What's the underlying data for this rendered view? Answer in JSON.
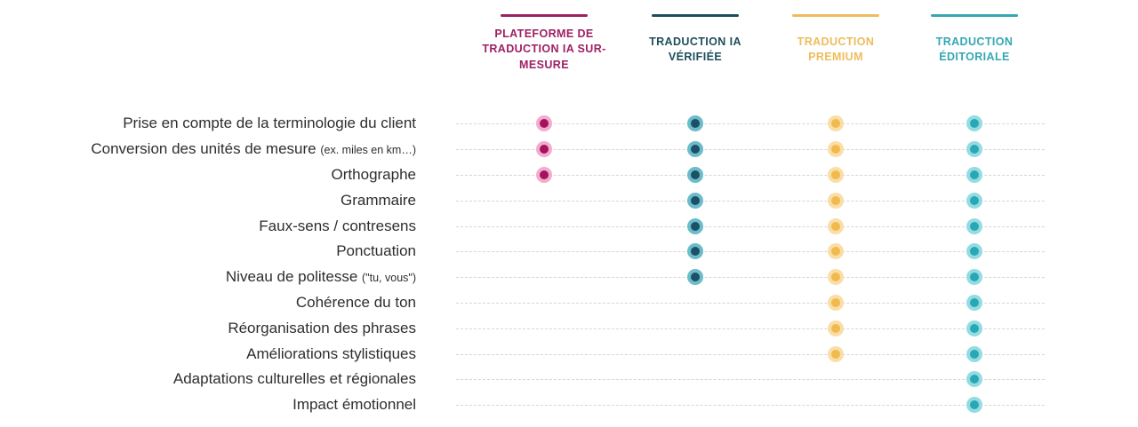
{
  "table": {
    "columns": [
      {
        "label": "PLATEFORME DE TRADUCTION IA SUR- MESURE",
        "color": "#9e2064",
        "dot_color": "#a5135e",
        "ring_color": "#f3abce"
      },
      {
        "label": "TRADUCTION IA VÉRIFIÉE",
        "color": "#1d4e5e",
        "dot_color": "#1b5164",
        "ring_color": "#6cbccb"
      },
      {
        "label": "TRADUCTION PREMIUM",
        "color": "#eebc5c",
        "dot_color": "#f2b94d",
        "ring_color": "#f9dea7"
      },
      {
        "label": "TRADUCTION ÉDITORIALE",
        "color": "#35a7b5",
        "dot_color": "#2aa7b5",
        "ring_color": "#93dce2"
      }
    ],
    "rows": [
      {
        "label": "Prise en compte de la terminologie du client",
        "note": "",
        "values": [
          true,
          true,
          true,
          true
        ]
      },
      {
        "label": "Conversion des unités de mesure",
        "note": "(ex. miles en km…)",
        "values": [
          true,
          true,
          true,
          true
        ]
      },
      {
        "label": "Orthographe",
        "note": "",
        "values": [
          true,
          true,
          true,
          true
        ]
      },
      {
        "label": "Grammaire",
        "note": "",
        "values": [
          false,
          true,
          true,
          true
        ]
      },
      {
        "label": "Faux-sens / contresens",
        "note": "",
        "values": [
          false,
          true,
          true,
          true
        ]
      },
      {
        "label": "Ponctuation",
        "note": "",
        "values": [
          false,
          true,
          true,
          true
        ]
      },
      {
        "label": "Niveau de politesse",
        "note": "(\"tu, vous\")",
        "values": [
          false,
          true,
          true,
          true
        ]
      },
      {
        "label": "Cohérence du ton",
        "note": "",
        "values": [
          false,
          false,
          true,
          true
        ]
      },
      {
        "label": "Réorganisation des phrases",
        "note": "",
        "values": [
          false,
          false,
          true,
          true
        ]
      },
      {
        "label": "Améliorations stylistiques",
        "note": "",
        "values": [
          false,
          false,
          true,
          true
        ]
      },
      {
        "label": "Adaptations culturelles et régionales",
        "note": "",
        "values": [
          false,
          false,
          false,
          true
        ]
      },
      {
        "label": "Impact émotionnel",
        "note": "",
        "values": [
          false,
          false,
          false,
          true
        ]
      }
    ]
  },
  "chart_data": {
    "type": "table",
    "title": "",
    "categories": [
      "Prise en compte de la terminologie du client",
      "Conversion des unités de mesure (ex. miles en km…)",
      "Orthographe",
      "Grammaire",
      "Faux-sens / contresens",
      "Ponctuation",
      "Niveau de politesse (\"tu, vous\")",
      "Cohérence du ton",
      "Réorganisation des phrases",
      "Améliorations stylistiques",
      "Adaptations culturelles et régionales",
      "Impact émotionnel"
    ],
    "series": [
      {
        "name": "PLATEFORME DE TRADUCTION IA SUR- MESURE",
        "values": [
          1,
          1,
          1,
          0,
          0,
          0,
          0,
          0,
          0,
          0,
          0,
          0
        ]
      },
      {
        "name": "TRADUCTION IA VÉRIFIÉE",
        "values": [
          1,
          1,
          1,
          1,
          1,
          1,
          1,
          0,
          0,
          0,
          0,
          0
        ]
      },
      {
        "name": "TRADUCTION PREMIUM",
        "values": [
          1,
          1,
          1,
          1,
          1,
          1,
          1,
          1,
          1,
          1,
          0,
          0
        ]
      },
      {
        "name": "TRADUCTION ÉDITORIALE",
        "values": [
          1,
          1,
          1,
          1,
          1,
          1,
          1,
          1,
          1,
          1,
          1,
          1
        ]
      }
    ],
    "legend_position": "top",
    "grid": "horizontal-dashed-row-guides"
  }
}
